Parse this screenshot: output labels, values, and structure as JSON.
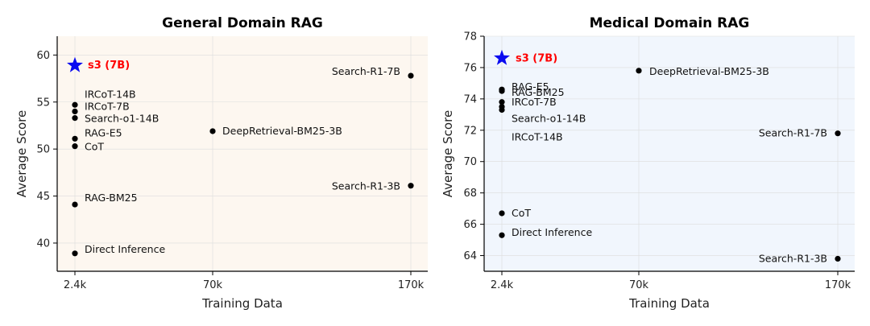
{
  "chart_data": [
    {
      "type": "scatter",
      "title": "General Domain RAG",
      "xlabel": "Training Data",
      "ylabel": "Average Score",
      "x_categories": [
        "2.4k",
        "70k",
        "170k"
      ],
      "ylim": [
        37,
        62
      ],
      "yticks": [
        40,
        45,
        50,
        55,
        60
      ],
      "background": "#fdf7f0",
      "grid": true,
      "points": [
        {
          "label": "s3 (7B)",
          "x": "2.4k",
          "y": 58.9,
          "marker": "star"
        },
        {
          "label": "IRCoT-14B",
          "x": "2.4k",
          "y": 54.7
        },
        {
          "label": "IRCoT-7B",
          "x": "2.4k",
          "y": 54.0
        },
        {
          "label": "Search-o1-14B",
          "x": "2.4k",
          "y": 53.3
        },
        {
          "label": "RAG-E5",
          "x": "2.4k",
          "y": 51.1
        },
        {
          "label": "CoT",
          "x": "2.4k",
          "y": 50.3
        },
        {
          "label": "RAG-BM25",
          "x": "2.4k",
          "y": 44.1
        },
        {
          "label": "Direct Inference",
          "x": "2.4k",
          "y": 38.9
        },
        {
          "label": "DeepRetrieval-BM25-3B",
          "x": "70k",
          "y": 51.9
        },
        {
          "label": "Search-R1-7B",
          "x": "170k",
          "y": 57.8
        },
        {
          "label": "Search-R1-3B",
          "x": "170k",
          "y": 46.1
        }
      ]
    },
    {
      "type": "scatter",
      "title": "Medical Domain RAG",
      "xlabel": "Training Data",
      "ylabel": "Average Score",
      "x_categories": [
        "2.4k",
        "70k",
        "170k"
      ],
      "ylim": [
        63,
        78
      ],
      "yticks": [
        64,
        66,
        68,
        70,
        72,
        74,
        76,
        78
      ],
      "background": "#f1f6fd",
      "grid": true,
      "points": [
        {
          "label": "s3 (7B)",
          "x": "2.4k",
          "y": 76.6,
          "marker": "star"
        },
        {
          "label": "RAG-E5",
          "x": "2.4k",
          "y": 74.6
        },
        {
          "label": "RAG-BM25",
          "x": "2.4k",
          "y": 74.5
        },
        {
          "label": "IRCoT-7B",
          "x": "2.4k",
          "y": 73.8
        },
        {
          "label": "Search-o1-14B",
          "x": "2.4k",
          "y": 73.5
        },
        {
          "label": "IRCoT-14B",
          "x": "2.4k",
          "y": 73.3
        },
        {
          "label": "CoT",
          "x": "2.4k",
          "y": 66.7
        },
        {
          "label": "Direct Inference",
          "x": "2.4k",
          "y": 65.3
        },
        {
          "label": "DeepRetrieval-BM25-3B",
          "x": "70k",
          "y": 75.8
        },
        {
          "label": "Search-R1-7B",
          "x": "170k",
          "y": 71.8
        },
        {
          "label": "Search-R1-3B",
          "x": "170k",
          "y": 63.8
        }
      ]
    }
  ],
  "colors": {
    "star": "#0a0af0",
    "star_label": "#ff0000",
    "point": "#000000"
  }
}
